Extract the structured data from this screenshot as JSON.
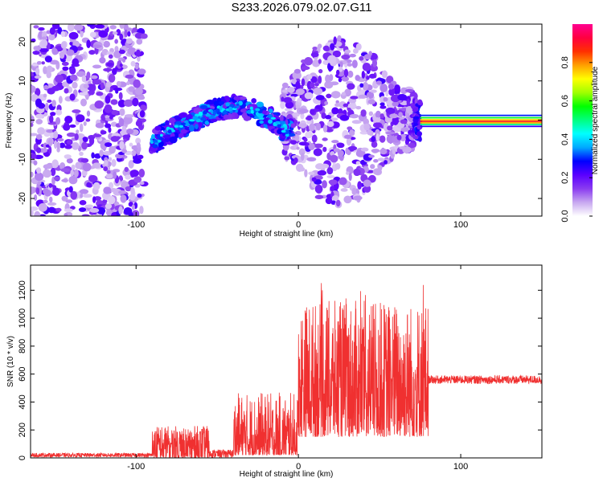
{
  "title": "S233.2026.079.02.07.G11",
  "chart_data": [
    {
      "type": "heatmap",
      "xlabel": "Height of straight line (km)",
      "ylabel": "Frequency (Hz)",
      "xlim": [
        -165,
        150
      ],
      "ylim": [
        -24.5,
        24.5
      ],
      "xticks": [
        -100,
        0,
        100
      ],
      "yticks": [
        -20,
        -10,
        0,
        10,
        20
      ],
      "colorbar": {
        "label": "Normalized spectral amplitude",
        "range": [
          0,
          1
        ],
        "ticks": [
          0.0,
          0.2,
          0.4,
          0.6,
          0.8
        ],
        "colors": [
          "#ffffff",
          "#c8a8f0",
          "#8a3cf0",
          "#5a00ff",
          "#0000ff",
          "#00a8ff",
          "#00ffff",
          "#00ff80",
          "#00ff00",
          "#a0ff00",
          "#ffff00",
          "#ffa000",
          "#ff3000",
          "#ff0040",
          "#ff0090"
        ]
      },
      "regions": [
        {
          "name": "scatter-left",
          "x": [
            -165,
            -95
          ],
          "y": [
            -24.5,
            24.5
          ],
          "level": 0.15
        },
        {
          "name": "arc",
          "points": [
            [
              -90,
              -6
            ],
            [
              -80,
              -3
            ],
            [
              -70,
              -1
            ],
            [
              -60,
              1
            ],
            [
              -50,
              2.5
            ],
            [
              -40,
              3.5
            ],
            [
              -30,
              3
            ],
            [
              -20,
              1
            ],
            [
              -10,
              -1.5
            ],
            [
              -5,
              -3
            ]
          ],
          "level": 0.3
        },
        {
          "name": "scatter-right",
          "x": [
            -10,
            72
          ],
          "y": [
            -22,
            22
          ],
          "level": 0.15
        },
        {
          "name": "band",
          "x": [
            75,
            150
          ],
          "y": [
            -1.5,
            0.5
          ],
          "level": 0.85
        }
      ]
    },
    {
      "type": "line",
      "xlabel": "Height of straight line (km)",
      "ylabel": "SNR (10 * v/v)",
      "xlim": [
        -165,
        150
      ],
      "ylim": [
        0,
        1380
      ],
      "xticks": [
        -100,
        0,
        100
      ],
      "yticks": [
        0,
        200,
        400,
        600,
        800,
        1000,
        1200
      ],
      "color": "#f03030",
      "segments": [
        {
          "x": [
            -165,
            -90
          ],
          "mean": 20,
          "amp": 15
        },
        {
          "x": [
            -90,
            -55
          ],
          "mean": 80,
          "amp": 150
        },
        {
          "x": [
            -55,
            -40
          ],
          "mean": 30,
          "amp": 30
        },
        {
          "x": [
            -40,
            0
          ],
          "mean": 180,
          "amp": 450
        },
        {
          "x": [
            0,
            80
          ],
          "mean": 420,
          "amp": 1300
        },
        {
          "x": [
            80,
            150
          ],
          "mean": 560,
          "amp": 60
        }
      ]
    }
  ]
}
